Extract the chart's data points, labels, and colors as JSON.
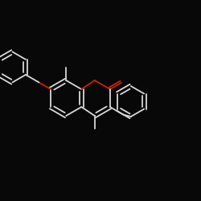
{
  "bg_color": "#080808",
  "bond_color": "#d8d8d8",
  "oxygen_color": "#cc2200",
  "lw": 1.3,
  "figsize": [
    2.5,
    2.5
  ],
  "dpi": 100
}
